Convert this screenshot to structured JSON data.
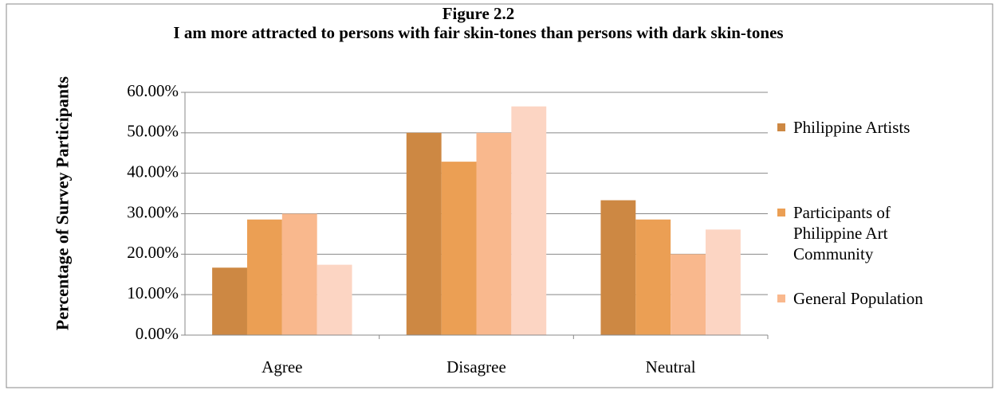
{
  "chart_data": {
    "type": "bar",
    "title": "Figure 2.2",
    "subtitle": "I am more attracted to persons with fair skin-tones than persons with dark skin-tones",
    "y_label": "Percentage of Survey Participants",
    "categories": [
      "Agree",
      "Disagree",
      "Neutral"
    ],
    "series": [
      {
        "name": "Philippine Artists",
        "color": "#cd8843",
        "values": [
          16.67,
          50,
          33.33
        ]
      },
      {
        "name": "Participants of Philippine Art Community",
        "color": "#eb9f54",
        "values": [
          28.57,
          42.86,
          28.57
        ]
      },
      {
        "name": "General Population",
        "color": "#f9b88d",
        "values": [
          30,
          50,
          20
        ]
      },
      {
        "name": null,
        "color": "#fcd5c3",
        "values": [
          17.39,
          56.52,
          26.09
        ]
      }
    ],
    "ylim": [
      0,
      60
    ],
    "yticks": [
      {
        "value": 0,
        "label": "0.00%"
      },
      {
        "value": 10,
        "label": "10.00%"
      },
      {
        "value": 20,
        "label": "20.00%"
      },
      {
        "value": 30,
        "label": "30.00%"
      },
      {
        "value": 40,
        "label": "40.00%"
      },
      {
        "value": 50,
        "label": "50.00%"
      },
      {
        "value": 60,
        "label": "60.00%"
      }
    ],
    "grid": true,
    "legend": "right"
  }
}
